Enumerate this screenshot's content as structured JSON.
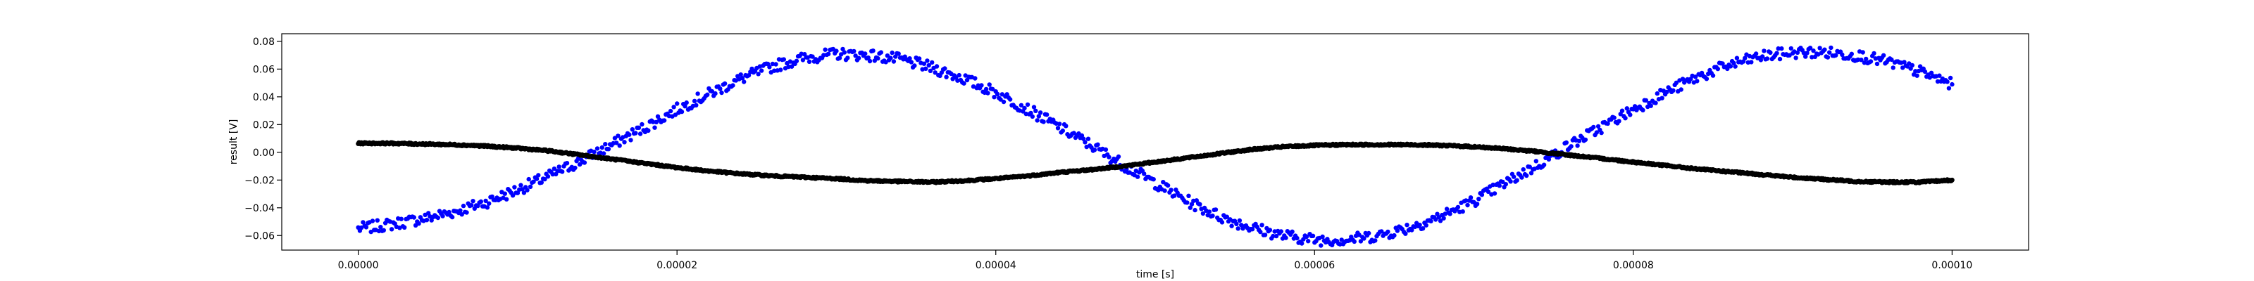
{
  "chart_data": {
    "type": "scatter",
    "title": "",
    "xlabel": "time [s]",
    "ylabel": "result [V]",
    "xlim": [
      -4.8e-06,
      0.0001048
    ],
    "ylim": [
      -0.0705,
      0.0855
    ],
    "xticks": [
      0.0,
      2e-05,
      4e-05,
      6e-05,
      8e-05,
      0.0001
    ],
    "xtick_labels": [
      "0.00000",
      "0.00002",
      "0.00004",
      "0.00006",
      "0.00008",
      "0.00010"
    ],
    "yticks": [
      -0.06,
      -0.04,
      -0.02,
      0.0,
      0.02,
      0.04,
      0.06,
      0.08
    ],
    "ytick_labels": [
      "−0.06",
      "−0.04",
      "−0.02",
      "0.00",
      "0.02",
      "0.04",
      "0.06",
      "0.08"
    ],
    "grid": false,
    "legend": "none",
    "series": [
      {
        "color": "#0000ff",
        "marker": "dot",
        "x": [
          0.0,
          2e-06,
          4e-06,
          6e-06,
          8e-06,
          1e-05,
          1.2e-05,
          1.4e-05,
          1.6e-05,
          1.8e-05,
          2e-05,
          2.2e-05,
          2.4e-05,
          2.6e-05,
          2.8e-05,
          3e-05,
          3.2e-05,
          3.4e-05,
          3.6e-05,
          3.8e-05,
          4e-05,
          4.2e-05,
          4.4e-05,
          4.6e-05,
          4.8e-05,
          5e-05,
          5.2e-05,
          5.4e-05,
          5.6e-05,
          5.8e-05,
          6e-05,
          6.2e-05,
          6.4e-05,
          6.6e-05,
          6.8e-05,
          7e-05,
          7.2e-05,
          7.4e-05,
          7.6e-05,
          7.8e-05,
          8e-05,
          8.2e-05,
          8.4e-05,
          8.6e-05,
          8.8e-05,
          9e-05,
          9.2e-05,
          9.4e-05,
          9.6e-05,
          9.8e-05,
          0.0001
        ],
        "y": [
          -0.055,
          -0.052,
          -0.048,
          -0.043,
          -0.036,
          -0.027,
          -0.017,
          -0.006,
          0.006,
          0.018,
          0.031,
          0.042,
          0.053,
          0.062,
          0.068,
          0.071,
          0.07,
          0.067,
          0.061,
          0.053,
          0.043,
          0.031,
          0.018,
          0.005,
          -0.009,
          -0.022,
          -0.035,
          -0.046,
          -0.054,
          -0.06,
          -0.063,
          -0.063,
          -0.06,
          -0.054,
          -0.046,
          -0.035,
          -0.022,
          -0.009,
          0.005,
          0.018,
          0.031,
          0.043,
          0.054,
          0.063,
          0.069,
          0.072,
          0.072,
          0.07,
          0.065,
          0.058,
          0.049
        ]
      },
      {
        "color": "#000000",
        "marker": "dot",
        "x": [
          0.0,
          2e-06,
          4e-06,
          6e-06,
          8e-06,
          1e-05,
          1.2e-05,
          1.4e-05,
          1.6e-05,
          1.8e-05,
          2e-05,
          2.2e-05,
          2.4e-05,
          2.6e-05,
          2.8e-05,
          3e-05,
          3.2e-05,
          3.4e-05,
          3.6e-05,
          3.8e-05,
          4e-05,
          4.2e-05,
          4.4e-05,
          4.6e-05,
          4.8e-05,
          5e-05,
          5.2e-05,
          5.4e-05,
          5.6e-05,
          5.8e-05,
          6e-05,
          6.2e-05,
          6.4e-05,
          6.6e-05,
          6.8e-05,
          7e-05,
          7.2e-05,
          7.4e-05,
          7.6e-05,
          7.8e-05,
          8e-05,
          8.2e-05,
          8.4e-05,
          8.6e-05,
          8.8e-05,
          9e-05,
          9.2e-05,
          9.4e-05,
          9.6e-05,
          9.8e-05,
          0.0001
        ],
        "y": [
          0.0065,
          0.0065,
          0.006,
          0.0055,
          0.0045,
          0.003,
          0.001,
          -0.002,
          -0.005,
          -0.008,
          -0.011,
          -0.0135,
          -0.0155,
          -0.017,
          -0.018,
          -0.019,
          -0.0205,
          -0.021,
          -0.0215,
          -0.0205,
          -0.019,
          -0.017,
          -0.0145,
          -0.0125,
          -0.01,
          -0.007,
          -0.004,
          -0.001,
          0.002,
          0.004,
          0.005,
          0.0055,
          0.0055,
          0.0055,
          0.005,
          0.004,
          0.0025,
          0.0005,
          -0.002,
          -0.0045,
          -0.007,
          -0.0095,
          -0.012,
          -0.014,
          -0.016,
          -0.018,
          -0.0195,
          -0.021,
          -0.0215,
          -0.0215,
          -0.02
        ]
      }
    ]
  }
}
